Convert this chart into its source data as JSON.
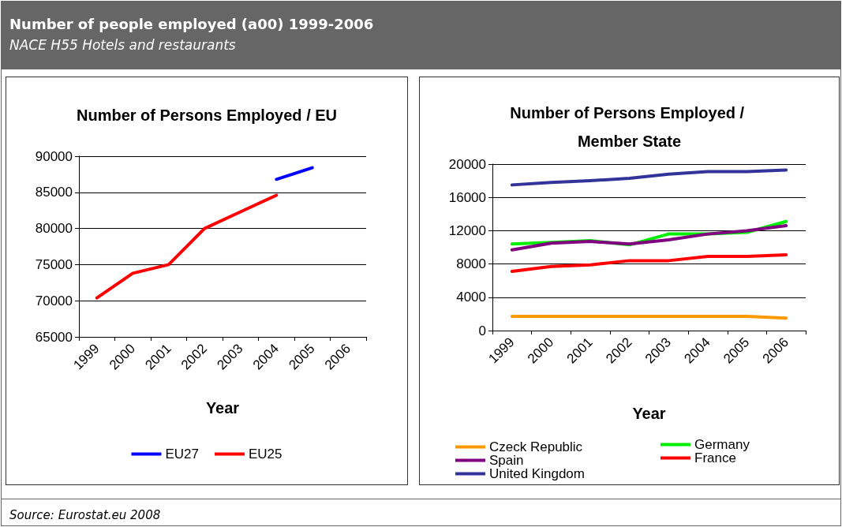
{
  "chart_data": [
    {
      "type": "other",
      "title": "Number of people employed (a00) 1999-2006",
      "subtitle": "NACE H55 Hotels and restaurants",
      "annotations": [
        "Source: Eurostat.eu 2008"
      ]
    },
    {
      "type": "line",
      "title": "Number of Persons Employed / EU",
      "xlabel": "Year",
      "categories": [
        "1999",
        "2000",
        "2001",
        "2002",
        "2003",
        "2004",
        "2005",
        "2006"
      ],
      "series": [
        {
          "name": "EU27",
          "color": "#0000ff",
          "values": [
            null,
            null,
            null,
            null,
            null,
            86800,
            88400,
            null
          ]
        },
        {
          "name": "EU25",
          "color": "#ff0000",
          "values": [
            70400,
            73800,
            75000,
            80000,
            82300,
            84600,
            null,
            null
          ]
        }
      ],
      "ylim": [
        65000,
        90000
      ],
      "yticks": [
        65000,
        70000,
        75000,
        80000,
        85000,
        90000
      ],
      "grid": "y",
      "legend": "bottom",
      "marker": "none",
      "line_style": "solid"
    },
    {
      "type": "line",
      "title": "Number of Persons Employed / Member State",
      "xlabel": "Year",
      "categories": [
        "1999",
        "2000",
        "2001",
        "2002",
        "2003",
        "2004",
        "2005",
        "2006"
      ],
      "series": [
        {
          "name": "Czeck Republic",
          "color": "#ff9900",
          "values": [
            1700,
            1700,
            1700,
            1700,
            1700,
            1700,
            1700,
            1500
          ]
        },
        {
          "name": "Germany",
          "color": "#00ee00",
          "values": [
            10400,
            10600,
            10800,
            10300,
            11600,
            11600,
            11800,
            13100
          ]
        },
        {
          "name": "Spain",
          "color": "#800080",
          "values": [
            9700,
            10500,
            10700,
            10400,
            10900,
            11600,
            12000,
            12600
          ]
        },
        {
          "name": "France",
          "color": "#ff0000",
          "values": [
            7100,
            7700,
            7900,
            8400,
            8400,
            8900,
            8900,
            9100
          ]
        },
        {
          "name": "United Kingdom",
          "color": "#333399",
          "values": [
            17500,
            17800,
            18000,
            18300,
            18800,
            19100,
            19100,
            19300
          ]
        }
      ],
      "ylim": [
        0,
        20000
      ],
      "yticks": [
        0,
        4000,
        8000,
        12000,
        16000,
        20000
      ],
      "grid": "y",
      "legend": "bottom",
      "marker": "none",
      "line_style": "solid"
    }
  ]
}
